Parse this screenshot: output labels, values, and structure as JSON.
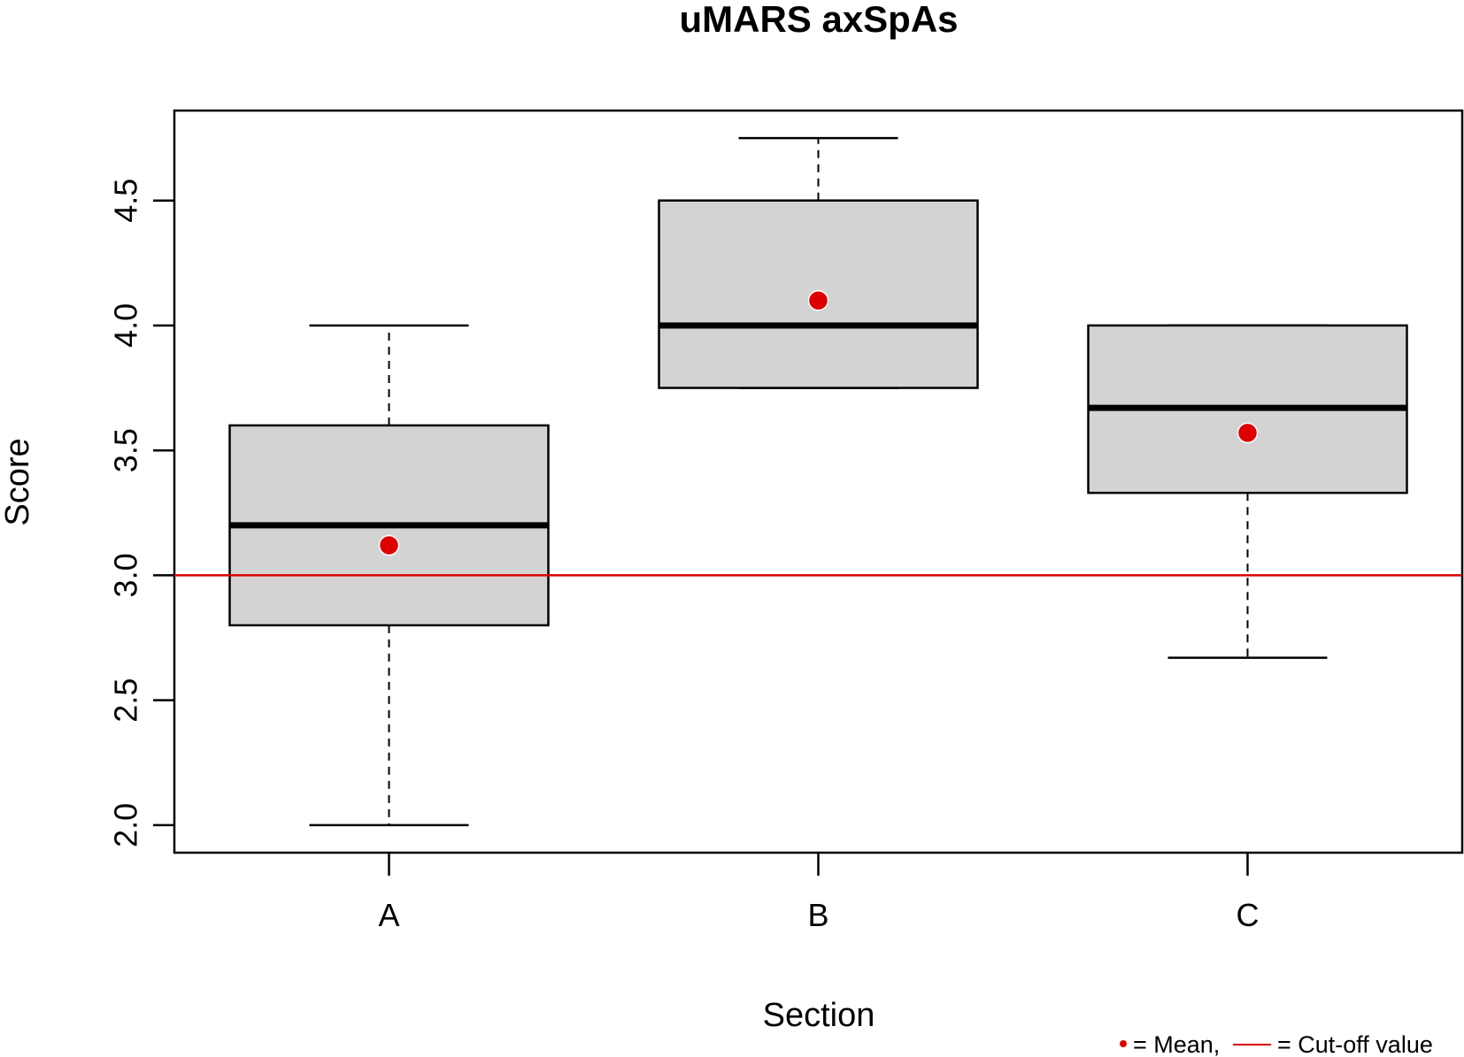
{
  "chart_data": {
    "type": "box",
    "title": "uMARS axSpAs",
    "xlabel": "Section",
    "ylabel": "Score",
    "categories": [
      "A",
      "B",
      "C"
    ],
    "ylim": [
      1.89,
      4.86
    ],
    "yticks": [
      2.0,
      2.5,
      3.0,
      3.5,
      4.0,
      4.5
    ],
    "ytick_labels": [
      "2.0",
      "2.5",
      "3.0",
      "3.5",
      "4.0",
      "4.5"
    ],
    "boxes": [
      {
        "category": "A",
        "whisker_low": 2.0,
        "q1": 2.8,
        "median": 3.2,
        "q3": 3.6,
        "whisker_high": 4.0,
        "mean": 3.12
      },
      {
        "category": "B",
        "whisker_low": 3.75,
        "q1": 3.75,
        "median": 4.0,
        "q3": 4.5,
        "whisker_high": 4.75,
        "mean": 4.1
      },
      {
        "category": "C",
        "whisker_low": 2.67,
        "q1": 3.33,
        "median": 3.67,
        "q3": 4.0,
        "whisker_high": 4.0,
        "mean": 3.57
      }
    ],
    "cutoff": 3.0,
    "grid": false,
    "legend": {
      "position": "bottom-right",
      "mean_label": "= Mean,",
      "cutoff_label": "= Cut-off value"
    },
    "colors": {
      "box_fill": "#d3d3d3",
      "mean": "#dd0000",
      "cutoff": "#dd0000",
      "line": "#000000"
    }
  }
}
